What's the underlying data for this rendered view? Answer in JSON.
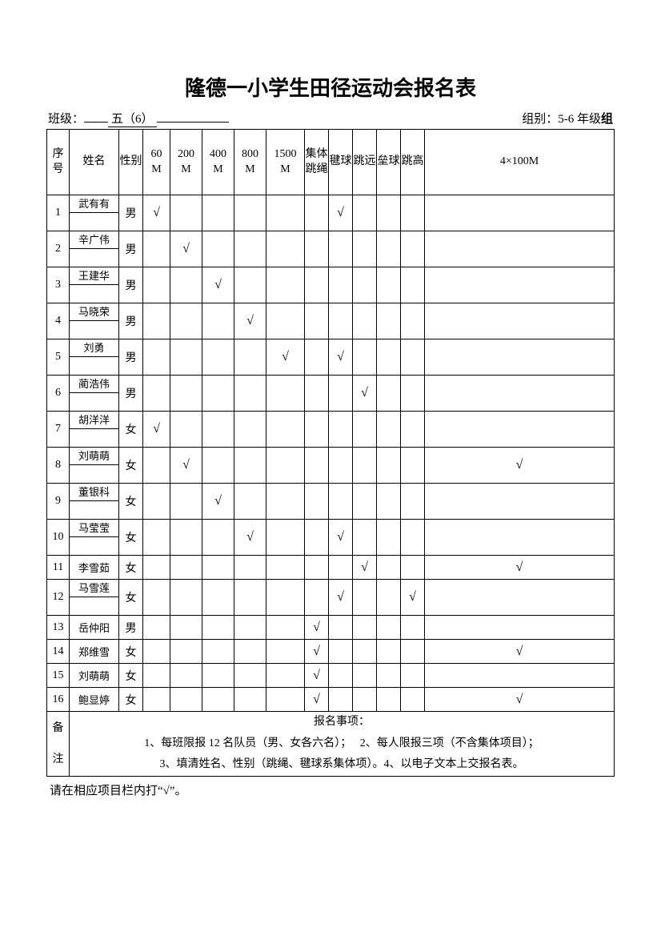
{
  "title": "隆德一小学生田径运动会报名表",
  "meta": {
    "class_label": "班级：",
    "class_value": "五（6）",
    "group_label": "组别：",
    "group_value_prefix": "5-6 年级",
    "group_value_bold": "组"
  },
  "columns": {
    "idx": "序号",
    "name": "姓名",
    "sex": "性别",
    "m60": "60M",
    "m200": "200M",
    "m400": "400M",
    "m800": "800M",
    "m1500": "1500M",
    "rope": "集体跳绳",
    "jian": "毽球",
    "long": "跳远",
    "lei": "垒球",
    "high": "跳高",
    "relay": "4×100M"
  },
  "check": "√",
  "rows": [
    {
      "idx": "1",
      "name": "武有有",
      "sex": "男",
      "split": true,
      "m60": true,
      "m200": false,
      "m400": false,
      "m800": false,
      "m1500": false,
      "rope": false,
      "jian": true,
      "long": false,
      "lei": false,
      "high": false,
      "relay": false
    },
    {
      "idx": "2",
      "name": "辛广伟",
      "sex": "男",
      "split": true,
      "m60": false,
      "m200": true,
      "m400": false,
      "m800": false,
      "m1500": false,
      "rope": false,
      "jian": false,
      "long": false,
      "lei": false,
      "high": false,
      "relay": false
    },
    {
      "idx": "3",
      "name": "王建华",
      "sex": "男",
      "split": true,
      "m60": false,
      "m200": false,
      "m400": true,
      "m800": false,
      "m1500": false,
      "rope": false,
      "jian": false,
      "long": false,
      "lei": false,
      "high": false,
      "relay": false
    },
    {
      "idx": "4",
      "name": "马晓荣",
      "sex": "男",
      "split": true,
      "m60": false,
      "m200": false,
      "m400": false,
      "m800": true,
      "m1500": false,
      "rope": false,
      "jian": false,
      "long": false,
      "lei": false,
      "high": false,
      "relay": false
    },
    {
      "idx": "5",
      "name": "刘勇",
      "sex": "男",
      "split": true,
      "m60": false,
      "m200": false,
      "m400": false,
      "m800": false,
      "m1500": true,
      "rope": false,
      "jian": true,
      "long": false,
      "lei": false,
      "high": false,
      "relay": false
    },
    {
      "idx": "6",
      "name": "蔺浩伟",
      "sex": "男",
      "split": true,
      "m60": false,
      "m200": false,
      "m400": false,
      "m800": false,
      "m1500": false,
      "rope": false,
      "jian": false,
      "long": true,
      "lei": false,
      "high": false,
      "relay": false
    },
    {
      "idx": "7",
      "name": "胡洋洋",
      "sex": "女",
      "split": true,
      "m60": true,
      "m200": false,
      "m400": false,
      "m800": false,
      "m1500": false,
      "rope": false,
      "jian": false,
      "long": false,
      "lei": false,
      "high": false,
      "relay": false
    },
    {
      "idx": "8",
      "name": "刘萌萌",
      "sex": "女",
      "split": true,
      "m60": false,
      "m200": true,
      "m400": false,
      "m800": false,
      "m1500": false,
      "rope": false,
      "jian": false,
      "long": false,
      "lei": false,
      "high": false,
      "relay": true
    },
    {
      "idx": "9",
      "name": "董银科",
      "sex": "女",
      "split": true,
      "m60": false,
      "m200": false,
      "m400": true,
      "m800": false,
      "m1500": false,
      "rope": false,
      "jian": false,
      "long": false,
      "lei": false,
      "high": false,
      "relay": false
    },
    {
      "idx": "10",
      "name": "马莹莹",
      "sex": "女",
      "split": true,
      "m60": false,
      "m200": false,
      "m400": false,
      "m800": true,
      "m1500": false,
      "rope": false,
      "jian": true,
      "long": false,
      "lei": false,
      "high": false,
      "relay": false
    },
    {
      "idx": "11",
      "name": "李雪茹",
      "sex": "女",
      "split": false,
      "m60": false,
      "m200": false,
      "m400": false,
      "m800": false,
      "m1500": false,
      "rope": false,
      "jian": false,
      "long": true,
      "lei": false,
      "high": false,
      "relay": true
    },
    {
      "idx": "12",
      "name": "马雪莲",
      "sex": "女",
      "split": true,
      "m60": false,
      "m200": false,
      "m400": false,
      "m800": false,
      "m1500": false,
      "rope": false,
      "jian": true,
      "long": false,
      "lei": false,
      "high": true,
      "relay": false
    },
    {
      "idx": "13",
      "name": "岳仲阳",
      "sex": "男",
      "split": false,
      "m60": false,
      "m200": false,
      "m400": false,
      "m800": false,
      "m1500": false,
      "rope": true,
      "jian": false,
      "long": false,
      "lei": false,
      "high": false,
      "relay": false
    },
    {
      "idx": "14",
      "name": "郑维雪",
      "sex": "女",
      "split": false,
      "m60": false,
      "m200": false,
      "m400": false,
      "m800": false,
      "m1500": false,
      "rope": true,
      "jian": false,
      "long": false,
      "lei": false,
      "high": false,
      "relay": true
    },
    {
      "idx": "15",
      "name": "刘萌萌",
      "sex": "女",
      "split": false,
      "m60": false,
      "m200": false,
      "m400": false,
      "m800": false,
      "m1500": false,
      "rope": true,
      "jian": false,
      "long": false,
      "lei": false,
      "high": false,
      "relay": false
    },
    {
      "idx": "16",
      "name": "鲍显婷",
      "sex": "女",
      "split": false,
      "m60": false,
      "m200": false,
      "m400": false,
      "m800": false,
      "m1500": false,
      "rope": true,
      "jian": false,
      "long": false,
      "lei": false,
      "high": false,
      "relay": true
    }
  ],
  "notes": {
    "label_1": "备",
    "label_2": "注",
    "heading": "报名事项：",
    "line1a": "1、每班限报 12 名队员（男、女各六名）；",
    "line1b": "2、每人限报三项（不含集体项目）；",
    "line2a": "3、填清姓名、性别（跳绳、毽球系集体项）。",
    "line2b": "4、以电子文本上交报名表。"
  },
  "footnote": "请在相应项目栏内打“√”。"
}
